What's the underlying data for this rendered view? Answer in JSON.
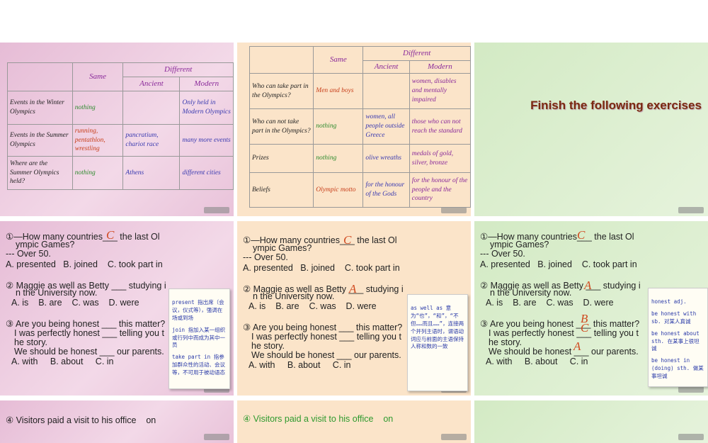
{
  "tables": [
    {
      "head": {
        "same": "Same",
        "different": "Different",
        "ancient": "Ancient",
        "modern": "Modern"
      },
      "rows": [
        [
          {
            "text": "Events in the Winter Olympics",
            "color": "#222"
          },
          {
            "text": "nothing",
            "color": "#2e8b2e"
          },
          {
            "text": "",
            "color": "#222"
          },
          {
            "text": "Only held in Modern Olympics",
            "color": "#3a3ab0"
          }
        ],
        [
          {
            "text": "Events in the Summer Olympics",
            "color": "#222"
          },
          {
            "text": "running, pentathlon, wrestling",
            "color": "#c8401c"
          },
          {
            "text": "pancratium, chariot race",
            "color": "#3a3ab0"
          },
          {
            "text": "many more events",
            "color": "#3a3ab0"
          }
        ],
        [
          {
            "text": "Where are the Summer Olympics held?",
            "color": "#222"
          },
          {
            "text": "nothing",
            "color": "#2e8b2e"
          },
          {
            "text": "Athens",
            "color": "#3a3ab0"
          },
          {
            "text": "different cities",
            "color": "#3a3ab0"
          }
        ]
      ]
    },
    {
      "head": {
        "same": "Same",
        "different": "Different",
        "ancient": "Ancient",
        "modern": "Modern"
      },
      "rows": [
        [
          {
            "text": "Who can take part in the Olympics?",
            "color": "#222"
          },
          {
            "text": "Men and boys",
            "color": "#c8401c"
          },
          {
            "text": "",
            "color": "#222"
          },
          {
            "text": "women, disables and mentally impaired",
            "color": "#8a2a9a"
          }
        ],
        [
          {
            "text": "Who can not take part in the Olympics?",
            "color": "#222"
          },
          {
            "text": "nothing",
            "color": "#2e8b2e"
          },
          {
            "text": "women, all people outside Greece",
            "color": "#3a3ab0"
          },
          {
            "text": "those who can not reach the standard",
            "color": "#8a2a9a"
          }
        ],
        [
          {
            "text": "Prizes",
            "color": "#222"
          },
          {
            "text": "nothing",
            "color": "#2e8b2e"
          },
          {
            "text": "olive wreaths",
            "color": "#3a3ab0"
          },
          {
            "text": "medals of gold, silver, bronze",
            "color": "#8a2a9a"
          }
        ],
        [
          {
            "text": "Beliefs",
            "color": "#222"
          },
          {
            "text": "Olympic motto",
            "color": "#c8401c"
          },
          {
            "text": "for the honour of the Gods",
            "color": "#3a3ab0"
          },
          {
            "text": "for the honour of the people and the country",
            "color": "#8a2a9a"
          }
        ]
      ]
    }
  ],
  "title_slide": "Finish the following exercises",
  "exercise": {
    "lines": [
      "①—How many countries___ the last Ol",
      "ympic Games?",
      "--- Over 50.",
      "A. presented   B. joined    C. took part in",
      "② Maggie as well as Betty ___ studying i",
      "n the University now.",
      "A. is    B. are    C. was    D. were",
      "③ Are you being honest ___ this matter?",
      "I was perfectly honest ___ telling you t",
      "he story.",
      "We should be honest ___ our parents.",
      "A. with     B. about     C. in"
    ]
  },
  "answers": [
    [
      "C"
    ],
    [
      "C",
      "A"
    ],
    [
      "C",
      "A",
      "B",
      "C",
      "A"
    ]
  ],
  "notes": [
    [
      "present 指出席（会议，仪式等），强调在场或到场",
      "join 指加入某一组织或行列中而成为其中一员",
      "take part in 指参加群众性的活动、会议等，不可用于被动语态"
    ],
    [
      "as well as 意为“也”，“和”，“不但……而且……”，连接两个并列主语时，谓语动词应与前面的主语保持人称和数的一致"
    ],
    [
      "honest adj.",
      "be honest with sb. 对某人真诚",
      "be honest about sth. 在某事上很坦诚",
      "be honest in (doing) sth. 做某事坦诚"
    ]
  ],
  "last_slides": [
    {
      "text": "④ Visitors paid a visit to his office    on",
      "color": "#222"
    },
    {
      "text": "④ Visitors paid a visit to his office    on",
      "color": "#2e9a2e"
    }
  ]
}
